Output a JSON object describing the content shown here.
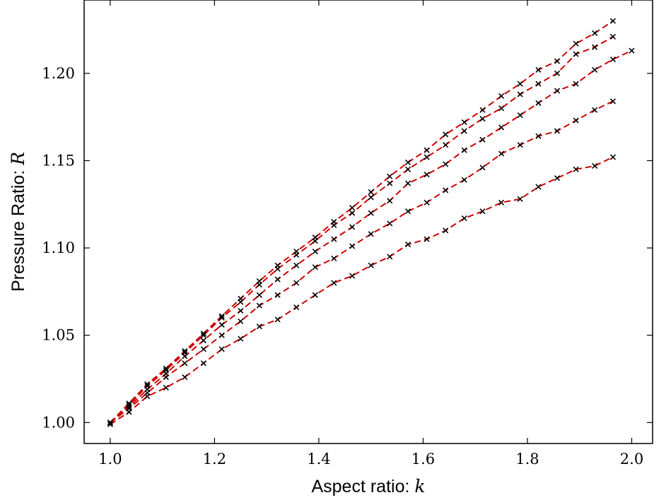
{
  "chart_data": {
    "type": "scatter",
    "xlabel": "Aspect ratio: ",
    "xlabel_var": "k",
    "ylabel": "Pressure Ratio: ",
    "ylabel_var": "R",
    "xlim": [
      0.95,
      2.04
    ],
    "ylim": [
      0.988,
      1.242
    ],
    "xticks": [
      1.0,
      1.2,
      1.4,
      1.6,
      1.8,
      2.0
    ],
    "xtick_labels": [
      "1.0",
      "1.2",
      "1.4",
      "1.6",
      "1.8",
      "2.0"
    ],
    "yticks": [
      1.0,
      1.05,
      1.1,
      1.15,
      1.2
    ],
    "ytick_labels": [
      "1.00",
      "1.05",
      "1.10",
      "1.15",
      "1.20"
    ],
    "grid": false,
    "fit_color": "#cc0000",
    "marker_color": "#000000",
    "series": [
      {
        "x": [
          1.0,
          1.036,
          1.071,
          1.107,
          1.143,
          1.179,
          1.214,
          1.25,
          1.286,
          1.321,
          1.357,
          1.393,
          1.429,
          1.464,
          1.5,
          1.536,
          1.571,
          1.607,
          1.643,
          1.679,
          1.714,
          1.75,
          1.786,
          1.821,
          1.857,
          1.893,
          1.929,
          1.964
        ],
        "y": [
          1.0,
          1.011,
          1.022,
          1.031,
          1.041,
          1.051,
          1.061,
          1.071,
          1.081,
          1.09,
          1.098,
          1.106,
          1.115,
          1.123,
          1.132,
          1.141,
          1.149,
          1.156,
          1.165,
          1.172,
          1.179,
          1.187,
          1.194,
          1.202,
          1.207,
          1.217,
          1.223,
          1.23
        ]
      },
      {
        "x": [
          1.0,
          1.036,
          1.071,
          1.107,
          1.143,
          1.179,
          1.214,
          1.25,
          1.286,
          1.321,
          1.357,
          1.393,
          1.429,
          1.464,
          1.5,
          1.536,
          1.571,
          1.607,
          1.643,
          1.679,
          1.714,
          1.75,
          1.786,
          1.821,
          1.857,
          1.893,
          1.929,
          1.964
        ],
        "y": [
          1.0,
          1.01,
          1.021,
          1.03,
          1.04,
          1.05,
          1.06,
          1.069,
          1.079,
          1.088,
          1.096,
          1.104,
          1.113,
          1.12,
          1.129,
          1.137,
          1.145,
          1.152,
          1.159,
          1.167,
          1.174,
          1.18,
          1.188,
          1.194,
          1.2,
          1.211,
          1.215,
          1.221
        ]
      },
      {
        "x": [
          1.0,
          1.036,
          1.071,
          1.107,
          1.143,
          1.179,
          1.214,
          1.25,
          1.286,
          1.321,
          1.357,
          1.393,
          1.429,
          1.464,
          1.5,
          1.536,
          1.571,
          1.607,
          1.643,
          1.679,
          1.714,
          1.75,
          1.786,
          1.821,
          1.857,
          1.893,
          1.929,
          1.964,
          2.0
        ],
        "y": [
          1.0,
          1.009,
          1.019,
          1.028,
          1.038,
          1.047,
          1.056,
          1.064,
          1.073,
          1.082,
          1.09,
          1.098,
          1.105,
          1.112,
          1.12,
          1.127,
          1.137,
          1.142,
          1.148,
          1.156,
          1.162,
          1.169,
          1.176,
          1.183,
          1.19,
          1.194,
          1.202,
          1.208,
          1.213
        ]
      },
      {
        "x": [
          1.0,
          1.036,
          1.071,
          1.107,
          1.143,
          1.179,
          1.214,
          1.25,
          1.286,
          1.321,
          1.357,
          1.393,
          1.429,
          1.464,
          1.5,
          1.536,
          1.571,
          1.607,
          1.643,
          1.679,
          1.714,
          1.75,
          1.786,
          1.821,
          1.857,
          1.893,
          1.929,
          1.964
        ],
        "y": [
          1.0,
          1.008,
          1.017,
          1.026,
          1.034,
          1.042,
          1.05,
          1.058,
          1.067,
          1.073,
          1.08,
          1.089,
          1.094,
          1.101,
          1.108,
          1.114,
          1.121,
          1.126,
          1.133,
          1.139,
          1.146,
          1.154,
          1.159,
          1.164,
          1.167,
          1.173,
          1.179,
          1.184
        ]
      },
      {
        "x": [
          1.0,
          1.036,
          1.071,
          1.107,
          1.143,
          1.179,
          1.214,
          1.25,
          1.286,
          1.321,
          1.357,
          1.393,
          1.429,
          1.464,
          1.5,
          1.536,
          1.571,
          1.607,
          1.643,
          1.679,
          1.714,
          1.75,
          1.786,
          1.821,
          1.857,
          1.893,
          1.929,
          1.964
        ],
        "y": [
          0.999,
          1.006,
          1.015,
          1.02,
          1.026,
          1.034,
          1.042,
          1.048,
          1.055,
          1.059,
          1.066,
          1.073,
          1.08,
          1.084,
          1.09,
          1.095,
          1.102,
          1.105,
          1.11,
          1.117,
          1.121,
          1.126,
          1.128,
          1.135,
          1.14,
          1.145,
          1.147,
          1.152
        ]
      }
    ]
  }
}
